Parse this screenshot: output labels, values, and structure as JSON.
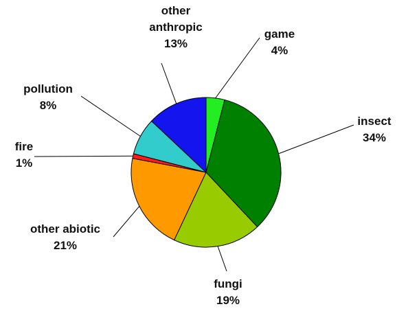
{
  "chart_data": {
    "type": "pie",
    "categories": [
      "game",
      "insect",
      "fungi",
      "other abiotic",
      "fire",
      "pollution",
      "other anthropic"
    ],
    "values": [
      4,
      34,
      19,
      21,
      1,
      8,
      13
    ],
    "value_labels": [
      "4%",
      "34%",
      "19%",
      "21%",
      "1%",
      "8%",
      "13%"
    ],
    "colors": [
      "#22ee22",
      "#008000",
      "#99cc00",
      "#ff9900",
      "#ff1a1a",
      "#33cccc",
      "#1414ee"
    ]
  }
}
